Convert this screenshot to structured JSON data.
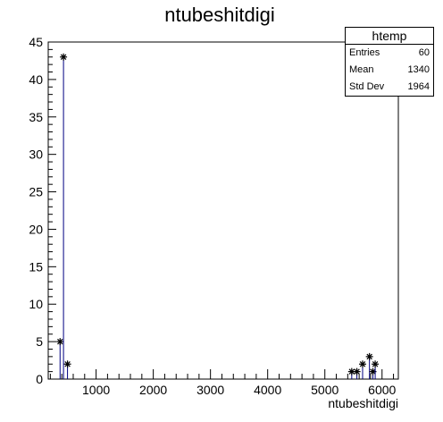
{
  "chart_data": {
    "type": "histogram",
    "title": "ntubeshitdigi",
    "xlabel": "ntubeshitdigi",
    "ylabel": "",
    "xlim": [
      163,
      6285
    ],
    "ylim": [
      0,
      45
    ],
    "xticks": [
      1000,
      2000,
      3000,
      4000,
      5000,
      6000
    ],
    "yticks": [
      0,
      5,
      10,
      15,
      20,
      25,
      30,
      35,
      40,
      45
    ],
    "bins": [
      {
        "x": 370,
        "y": 5
      },
      {
        "x": 430,
        "y": 43
      },
      {
        "x": 500,
        "y": 2
      },
      {
        "x": 5470,
        "y": 1
      },
      {
        "x": 5560,
        "y": 1
      },
      {
        "x": 5660,
        "y": 2
      },
      {
        "x": 5780,
        "y": 3
      },
      {
        "x": 5840,
        "y": 1
      },
      {
        "x": 5880,
        "y": 2
      }
    ],
    "line_color": "#000080",
    "marker": "asterisk",
    "grid": false
  },
  "stats": {
    "name": "htemp",
    "rows": [
      {
        "label": "Entries",
        "value": "60"
      },
      {
        "label": "Mean",
        "value": "1340"
      },
      {
        "label": "Std Dev",
        "value": "1964"
      }
    ]
  }
}
